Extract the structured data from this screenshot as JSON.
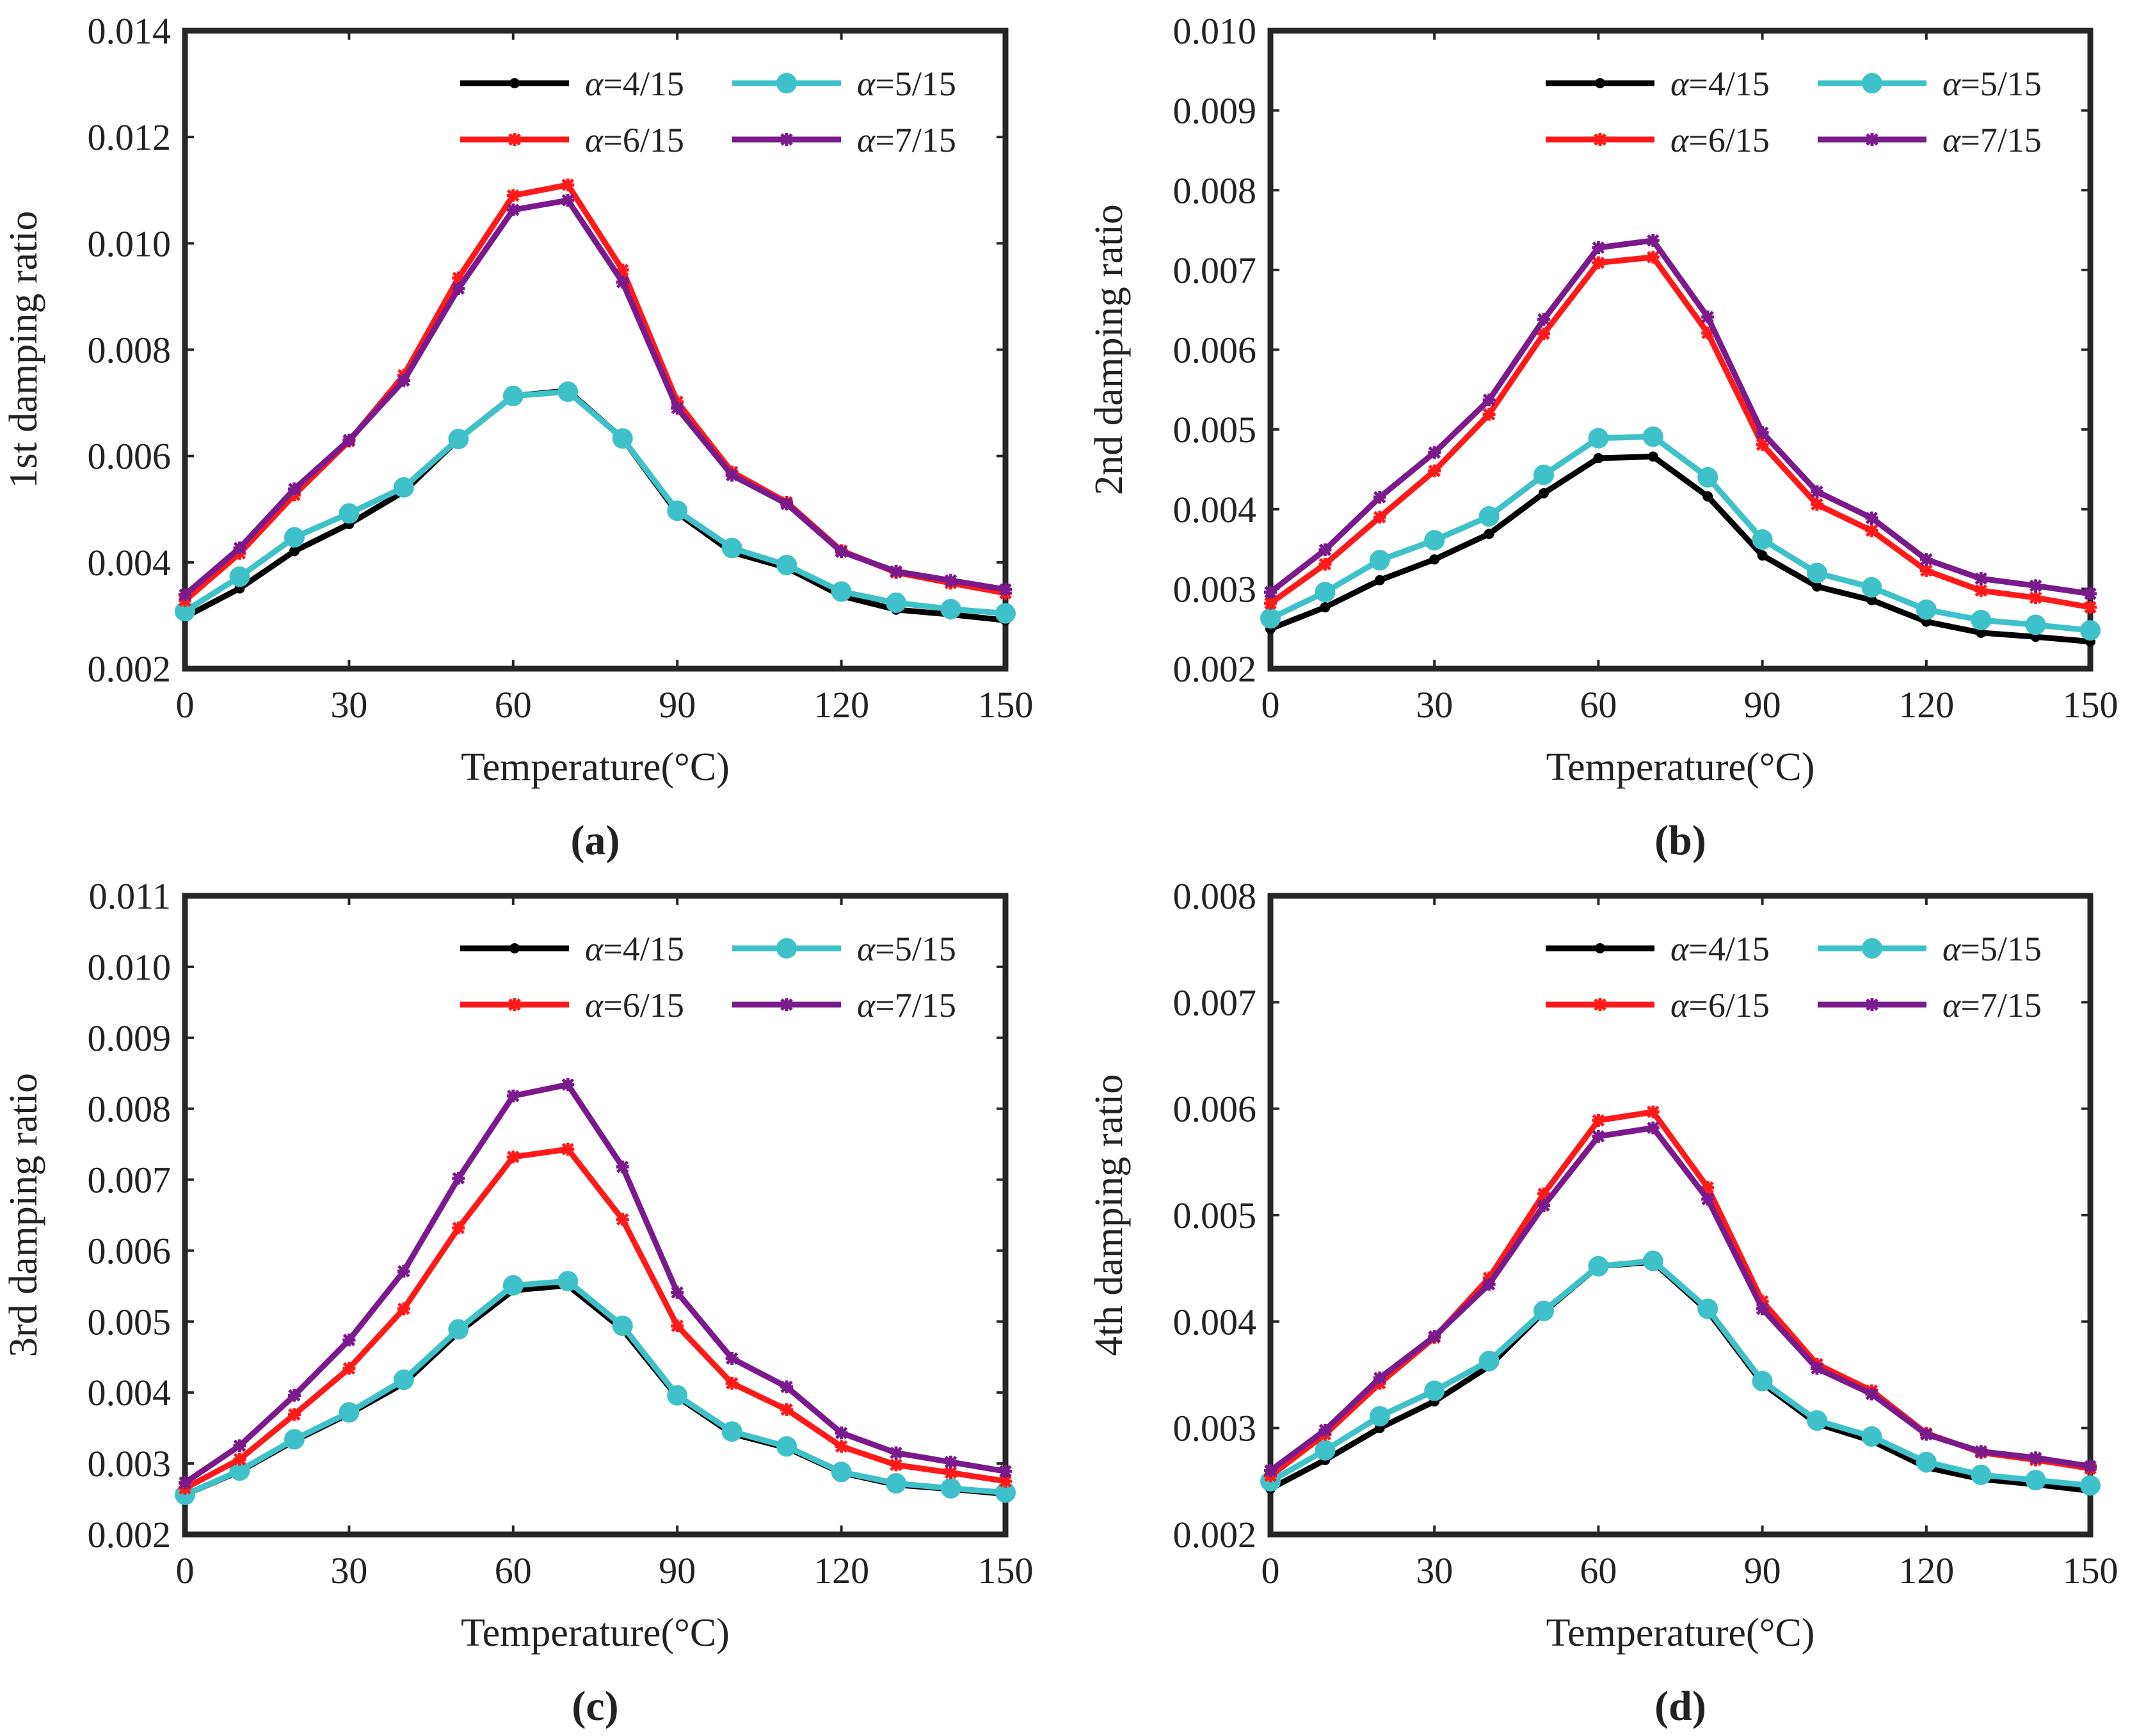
{
  "figure": {
    "x_ticks": [
      0,
      30,
      60,
      90,
      120,
      150
    ],
    "xlabel": "Temperature(°C)"
  },
  "chart_data": [
    {
      "type": "line",
      "panel": "a",
      "caption": "(a)",
      "ylabel": "1st damping ratio",
      "xlabel": "Temperature(°C)",
      "xlim": [
        0,
        150
      ],
      "ylim": [
        0.002,
        0.014
      ],
      "yticks": [
        "0.002",
        "0.004",
        "0.006",
        "0.008",
        "0.010",
        "0.012",
        "0.014"
      ],
      "x": [
        0,
        10,
        20,
        30,
        40,
        50,
        60,
        70,
        80,
        90,
        100,
        110,
        120,
        130,
        140,
        150
      ],
      "series": [
        {
          "name": "α=4/15",
          "alpha_label": "α",
          "value_label": "=4/15",
          "color": "#000000",
          "marker": "dot",
          "values": [
            0.00297,
            0.00351,
            0.00421,
            0.00472,
            0.00533,
            0.00632,
            0.00713,
            0.00723,
            0.00633,
            0.00493,
            0.00419,
            0.0039,
            0.00337,
            0.00311,
            0.00302,
            0.00291
          ]
        },
        {
          "name": "α=5/15",
          "alpha_label": "α",
          "value_label": "=5/15",
          "color": "#3fc1c9",
          "marker": "circle",
          "values": [
            0.00308,
            0.00373,
            0.00447,
            0.00492,
            0.00541,
            0.00632,
            0.00713,
            0.00721,
            0.00633,
            0.00497,
            0.00427,
            0.00395,
            0.00345,
            0.00324,
            0.00312,
            0.00304
          ]
        },
        {
          "name": "α=6/15",
          "alpha_label": "α",
          "value_label": "=6/15",
          "color": "#ff1a1a",
          "marker": "star",
          "values": [
            0.00328,
            0.00417,
            0.00527,
            0.00628,
            0.00752,
            0.00935,
            0.0109,
            0.0111,
            0.0095,
            0.00702,
            0.0057,
            0.00513,
            0.00422,
            0.00381,
            0.00361,
            0.00342
          ]
        },
        {
          "name": "α=7/15",
          "alpha_label": "α",
          "value_label": "=7/15",
          "color": "#7a1a8c",
          "marker": "star",
          "values": [
            0.00339,
            0.00427,
            0.00538,
            0.0063,
            0.00742,
            0.00915,
            0.01063,
            0.01081,
            0.00927,
            0.0069,
            0.00564,
            0.0051,
            0.0042,
            0.00383,
            0.00366,
            0.00349
          ]
        }
      ]
    },
    {
      "type": "line",
      "panel": "b",
      "caption": "(b)",
      "ylabel": "2nd damping ratio",
      "xlabel": "Temperature(°C)",
      "xlim": [
        0,
        150
      ],
      "ylim": [
        0.002,
        0.01
      ],
      "yticks": [
        "0.002",
        "0.003",
        "0.004",
        "0.005",
        "0.006",
        "0.007",
        "0.008",
        "0.009",
        "0.010"
      ],
      "x": [
        0,
        10,
        20,
        30,
        40,
        50,
        60,
        70,
        80,
        90,
        100,
        110,
        120,
        130,
        140,
        150
      ],
      "series": [
        {
          "name": "α=4/15",
          "alpha_label": "α",
          "value_label": "=4/15",
          "color": "#000000",
          "marker": "dot",
          "values": [
            0.0025,
            0.00277,
            0.00311,
            0.00337,
            0.00369,
            0.0042,
            0.00464,
            0.00466,
            0.00416,
            0.00342,
            0.00303,
            0.00286,
            0.00259,
            0.00245,
            0.0024,
            0.00234
          ]
        },
        {
          "name": "α=5/15",
          "alpha_label": "α",
          "value_label": "=5/15",
          "color": "#3fc1c9",
          "marker": "circle",
          "values": [
            0.00263,
            0.00296,
            0.00336,
            0.00361,
            0.00391,
            0.00443,
            0.00489,
            0.00491,
            0.0044,
            0.00362,
            0.0032,
            0.00302,
            0.00274,
            0.00261,
            0.00255,
            0.00248
          ]
        },
        {
          "name": "α=6/15",
          "alpha_label": "α",
          "value_label": "=6/15",
          "color": "#ff1a1a",
          "marker": "star",
          "values": [
            0.00282,
            0.00331,
            0.0039,
            0.00448,
            0.00519,
            0.0062,
            0.00709,
            0.00716,
            0.00621,
            0.00481,
            0.00406,
            0.00373,
            0.00323,
            0.00298,
            0.00289,
            0.00277
          ]
        },
        {
          "name": "α=7/15",
          "alpha_label": "α",
          "value_label": "=7/15",
          "color": "#7a1a8c",
          "marker": "star",
          "values": [
            0.00296,
            0.00349,
            0.00415,
            0.00471,
            0.00537,
            0.00638,
            0.00728,
            0.00737,
            0.00641,
            0.00496,
            0.00422,
            0.00389,
            0.00337,
            0.00313,
            0.00304,
            0.00294
          ]
        }
      ]
    },
    {
      "type": "line",
      "panel": "c",
      "caption": "(c)",
      "ylabel": "3rd damping ratio",
      "xlabel": "Temperature(°C)",
      "xlim": [
        0,
        150
      ],
      "ylim": [
        0.002,
        0.011
      ],
      "yticks": [
        "0.002",
        "0.003",
        "0.004",
        "0.005",
        "0.006",
        "0.007",
        "0.008",
        "0.009",
        "0.010",
        "0.011"
      ],
      "x": [
        0,
        10,
        20,
        30,
        40,
        50,
        60,
        70,
        80,
        90,
        100,
        110,
        120,
        130,
        140,
        150
      ],
      "series": [
        {
          "name": "α=4/15",
          "alpha_label": "α",
          "value_label": "=4/15",
          "color": "#000000",
          "marker": "dot",
          "values": [
            0.00256,
            0.00289,
            0.00332,
            0.0037,
            0.00413,
            0.00485,
            0.00544,
            0.00551,
            0.00489,
            0.00394,
            0.00342,
            0.00322,
            0.00287,
            0.0027,
            0.00264,
            0.00257
          ]
        },
        {
          "name": "α=5/15",
          "alpha_label": "α",
          "value_label": "=5/15",
          "color": "#3fc1c9",
          "marker": "circle",
          "values": [
            0.00256,
            0.0029,
            0.00334,
            0.00372,
            0.00418,
            0.00489,
            0.00551,
            0.00557,
            0.00494,
            0.00396,
            0.00345,
            0.00324,
            0.00288,
            0.00272,
            0.00265,
            0.00259
          ]
        },
        {
          "name": "α=6/15",
          "alpha_label": "α",
          "value_label": "=6/15",
          "color": "#ff1a1a",
          "marker": "star",
          "values": [
            0.00265,
            0.00306,
            0.00369,
            0.00434,
            0.00518,
            0.00632,
            0.00732,
            0.00743,
            0.00644,
            0.00494,
            0.00413,
            0.00376,
            0.00324,
            0.00298,
            0.00287,
            0.00275
          ]
        },
        {
          "name": "α=7/15",
          "alpha_label": "α",
          "value_label": "=7/15",
          "color": "#7a1a8c",
          "marker": "star",
          "values": [
            0.00273,
            0.00325,
            0.00396,
            0.00474,
            0.00571,
            0.00702,
            0.00818,
            0.00834,
            0.00718,
            0.00541,
            0.00448,
            0.00408,
            0.00343,
            0.00315,
            0.00302,
            0.00289
          ]
        }
      ]
    },
    {
      "type": "line",
      "panel": "d",
      "caption": "(d)",
      "ylabel": "4th damping ratio",
      "xlabel": "Temperature(°C)",
      "xlim": [
        0,
        150
      ],
      "ylim": [
        0.002,
        0.008
      ],
      "yticks": [
        "0.002",
        "0.003",
        "0.004",
        "0.005",
        "0.006",
        "0.007",
        "0.008"
      ],
      "x": [
        0,
        10,
        20,
        30,
        40,
        50,
        60,
        70,
        80,
        90,
        100,
        110,
        120,
        130,
        140,
        150
      ],
      "series": [
        {
          "name": "α=4/15",
          "alpha_label": "α",
          "value_label": "=4/15",
          "color": "#000000",
          "marker": "dot",
          "values": [
            0.00243,
            0.0027,
            0.003,
            0.00325,
            0.00358,
            0.00409,
            0.00452,
            0.00456,
            0.0041,
            0.00342,
            0.00304,
            0.00288,
            0.00263,
            0.00252,
            0.00247,
            0.00241
          ]
        },
        {
          "name": "α=5/15",
          "alpha_label": "α",
          "value_label": "=5/15",
          "color": "#3fc1c9",
          "marker": "circle",
          "values": [
            0.0025,
            0.00279,
            0.00311,
            0.00335,
            0.00363,
            0.0041,
            0.00452,
            0.00457,
            0.00412,
            0.00344,
            0.00307,
            0.00292,
            0.00268,
            0.00256,
            0.00251,
            0.00246
          ]
        },
        {
          "name": "α=6/15",
          "alpha_label": "α",
          "value_label": "=6/15",
          "color": "#ff1a1a",
          "marker": "star",
          "values": [
            0.00255,
            0.00294,
            0.00342,
            0.00385,
            0.00441,
            0.0052,
            0.00589,
            0.00597,
            0.00526,
            0.00419,
            0.0036,
            0.00335,
            0.00295,
            0.00277,
            0.0027,
            0.00262
          ]
        },
        {
          "name": "α=7/15",
          "alpha_label": "α",
          "value_label": "=7/15",
          "color": "#7a1a8c",
          "marker": "star",
          "values": [
            0.0026,
            0.00298,
            0.00347,
            0.00386,
            0.00435,
            0.00509,
            0.00574,
            0.00582,
            0.00515,
            0.00412,
            0.00356,
            0.00332,
            0.00294,
            0.00278,
            0.00272,
            0.00264
          ]
        }
      ]
    }
  ]
}
